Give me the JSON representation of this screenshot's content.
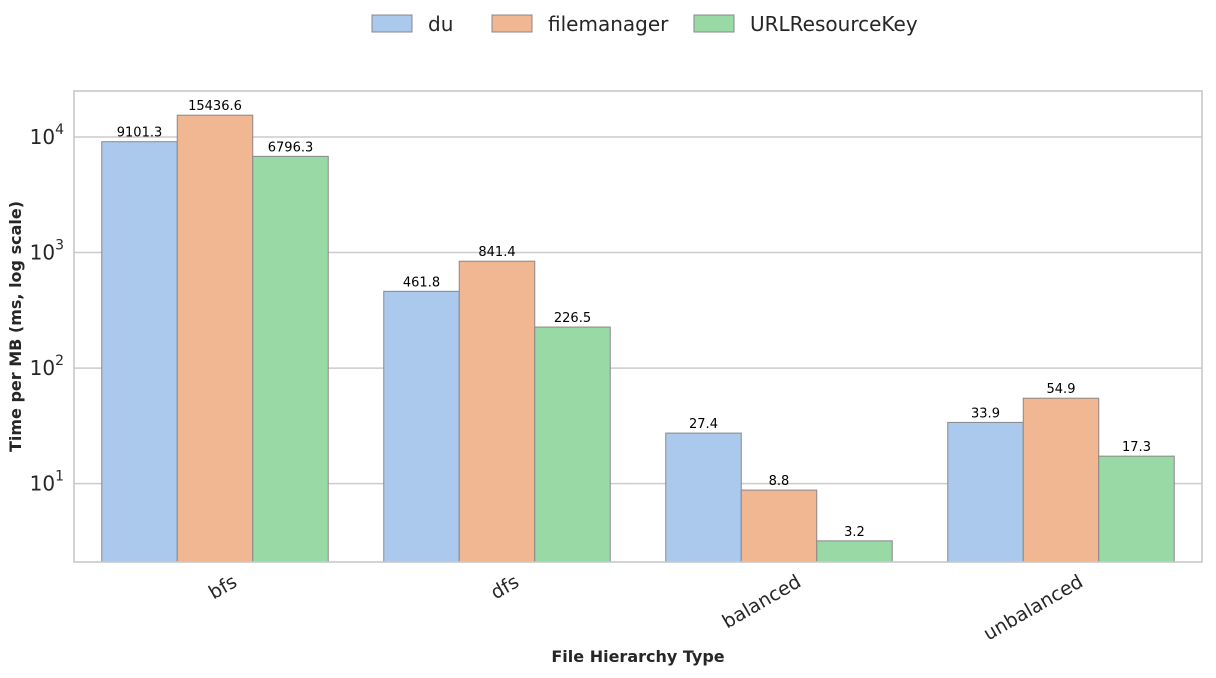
{
  "chart_data": {
    "type": "bar",
    "categories": [
      "bfs",
      "dfs",
      "balanced",
      "unbalanced"
    ],
    "series": [
      {
        "name": "du",
        "values": [
          9101.3,
          461.8,
          27.4,
          33.9
        ],
        "color": "#abc9ed"
      },
      {
        "name": "filemanager",
        "values": [
          15436.6,
          841.4,
          8.8,
          54.9
        ],
        "color": "#f0b792"
      },
      {
        "name": "URLResourceKey",
        "values": [
          6796.3,
          226.5,
          3.2,
          17.3
        ],
        "color": "#98d9a6"
      }
    ],
    "data_labels": [
      [
        "9101.3",
        "461.8",
        "27.4",
        "33.9"
      ],
      [
        "15436.6",
        "841.4",
        "8.8",
        "54.9"
      ],
      [
        "6796.3",
        "226.5",
        "3.2",
        "17.3"
      ]
    ],
    "xlabel": "File Hierarchy Type",
    "ylabel": "Time per MB (ms, log scale)",
    "yscale": "log",
    "ylim": [
      2.1,
      25000
    ],
    "yticks": [
      {
        "value": 10,
        "base": "10",
        "exp": "1"
      },
      {
        "value": 100,
        "base": "10",
        "exp": "2"
      },
      {
        "value": 1000,
        "base": "10",
        "exp": "3"
      },
      {
        "value": 10000,
        "base": "10",
        "exp": "4"
      }
    ],
    "grid": true,
    "legend_position": "top-center"
  }
}
